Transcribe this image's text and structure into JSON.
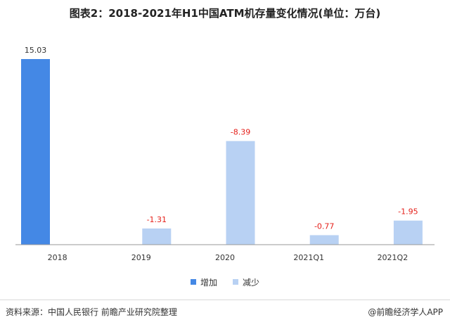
{
  "title": "图表2：2018-2021年H1中国ATM机存量变化情况(单位：万台)",
  "source": "资料来源：中国人民银行 前瞻产业研究院整理",
  "brand": "@前瞻经济学人APP",
  "colors": {
    "increase": "#4488e5",
    "decrease": "#b8d1f3",
    "decrease_label": "#e5201a",
    "axis": "#999999"
  },
  "chart_data": {
    "type": "bar",
    "categories": [
      "2018",
      "2019",
      "2020",
      "2021Q1",
      "2021Q2"
    ],
    "series": [
      {
        "name": "增加",
        "values": [
          15.03,
          null,
          null,
          null,
          null
        ]
      },
      {
        "name": "减少",
        "values": [
          null,
          -1.31,
          -8.39,
          -0.77,
          -1.95
        ]
      }
    ],
    "data_labels": [
      "15.03",
      "-1.31",
      "-8.39",
      "-0.77",
      "-1.95"
    ],
    "title": "图表2：2018-2021年H1中国ATM机存量变化情况(单位：万台)",
    "xlabel": "",
    "ylabel": "",
    "ylim": [
      0,
      15.03
    ],
    "grid": false,
    "legend_position": "bottom"
  }
}
